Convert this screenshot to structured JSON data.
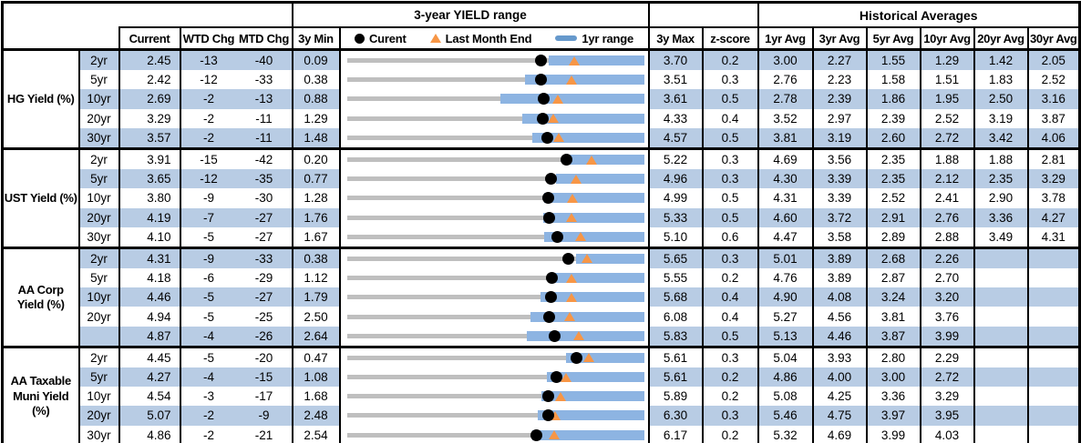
{
  "titles": {
    "chart_box": "3-year YIELD range",
    "historical": "Historical Averages"
  },
  "legend": {
    "current": "Curent",
    "last_month_end": "Last Month End",
    "one_year_range": "1yr range"
  },
  "columns": {
    "current": "Current",
    "wtd": "WTD Chg",
    "mtd": "MTD Chg",
    "min": "3y Min",
    "max": "3y Max",
    "z": "z-score",
    "avgs": [
      "1yr Avg",
      "3yr Avg",
      "5yr Avg",
      "10yr Avg",
      "20yr Avg",
      "30yr Avg"
    ]
  },
  "colors": {
    "band": "#B8CCE4",
    "range_bar_1yr": "#8DB4E2",
    "range_bar_3yr": "#BFBFBF",
    "current_dot": "#000000",
    "last_month_triangle": "#F79646",
    "border": "#000000"
  },
  "sections": [
    {
      "label": "HG Yield (%)",
      "rows": [
        {
          "tenor": "2yr",
          "current": "2.45",
          "wtd": "-13",
          "mtd": "-40",
          "min": "0.09",
          "max": "3.70",
          "z": "0.2",
          "avgs": [
            "3.00",
            "2.27",
            "1.55",
            "1.29",
            "1.42",
            "2.05"
          ],
          "lme": 2.85,
          "r1": 2.54
        },
        {
          "tenor": "5yr",
          "current": "2.42",
          "wtd": "-12",
          "mtd": "-33",
          "min": "0.38",
          "max": "3.51",
          "z": "0.3",
          "avgs": [
            "2.76",
            "2.23",
            "1.58",
            "1.51",
            "1.83",
            "2.52"
          ],
          "lme": 2.75,
          "r1": 2.26
        },
        {
          "tenor": "10yr",
          "current": "2.69",
          "wtd": "-2",
          "mtd": "-13",
          "min": "0.88",
          "max": "3.61",
          "z": "0.5",
          "avgs": [
            "2.78",
            "2.39",
            "1.86",
            "1.95",
            "2.50",
            "3.16"
          ],
          "lme": 2.82,
          "r1": 2.29
        },
        {
          "tenor": "20yr",
          "current": "3.29",
          "wtd": "-2",
          "mtd": "-11",
          "min": "1.29",
          "max": "4.33",
          "z": "0.4",
          "avgs": [
            "3.52",
            "2.97",
            "2.39",
            "2.52",
            "3.19",
            "3.87"
          ],
          "lme": 3.4,
          "r1": 3.09
        },
        {
          "tenor": "30yr",
          "current": "3.57",
          "wtd": "-2",
          "mtd": "-11",
          "min": "1.48",
          "max": "4.57",
          "z": "0.5",
          "avgs": [
            "3.81",
            "3.19",
            "2.60",
            "2.72",
            "3.42",
            "4.06"
          ],
          "lme": 3.68,
          "r1": 3.41
        }
      ]
    },
    {
      "label": "UST Yield (%)",
      "rows": [
        {
          "tenor": "2yr",
          "current": "3.91",
          "wtd": "-15",
          "mtd": "-42",
          "min": "0.20",
          "max": "5.22",
          "z": "0.3",
          "avgs": [
            "4.69",
            "3.56",
            "2.35",
            "1.88",
            "1.88",
            "2.81"
          ],
          "lme": 4.33,
          "r1": 3.88
        },
        {
          "tenor": "5yr",
          "current": "3.65",
          "wtd": "-12",
          "mtd": "-35",
          "min": "0.77",
          "max": "4.96",
          "z": "0.3",
          "avgs": [
            "4.30",
            "3.39",
            "2.35",
            "2.12",
            "2.35",
            "3.29"
          ],
          "lme": 4.0,
          "r1": 3.72
        },
        {
          "tenor": "10yr",
          "current": "3.80",
          "wtd": "-9",
          "mtd": "-30",
          "min": "1.28",
          "max": "4.99",
          "z": "0.5",
          "avgs": [
            "4.31",
            "3.39",
            "2.52",
            "2.41",
            "2.90",
            "3.78"
          ],
          "lme": 4.1,
          "r1": 3.74
        },
        {
          "tenor": "20yr",
          "current": "4.19",
          "wtd": "-7",
          "mtd": "-27",
          "min": "1.76",
          "max": "5.33",
          "z": "0.5",
          "avgs": [
            "4.60",
            "3.72",
            "2.91",
            "2.76",
            "3.36",
            "4.27"
          ],
          "lme": 4.46,
          "r1": 4.12
        },
        {
          "tenor": "30yr",
          "current": "4.10",
          "wtd": "-5",
          "mtd": "-27",
          "min": "1.67",
          "max": "5.10",
          "z": "0.6",
          "avgs": [
            "4.47",
            "3.58",
            "2.89",
            "2.88",
            "3.49",
            "4.31"
          ],
          "lme": 4.37,
          "r1": 3.95
        }
      ]
    },
    {
      "label": "AA Corp Yield (%)",
      "rows": [
        {
          "tenor": "2yr",
          "current": "4.31",
          "wtd": "-9",
          "mtd": "-33",
          "min": "0.38",
          "max": "5.65",
          "z": "0.3",
          "avgs": [
            "5.01",
            "3.89",
            "2.68",
            "2.26",
            "",
            ""
          ],
          "lme": 4.64,
          "r1": 4.45
        },
        {
          "tenor": "5yr",
          "current": "4.18",
          "wtd": "-6",
          "mtd": "-29",
          "min": "1.12",
          "max": "5.55",
          "z": "0.2",
          "avgs": [
            "4.76",
            "3.89",
            "2.87",
            "2.70",
            "",
            ""
          ],
          "lme": 4.47,
          "r1": 4.13
        },
        {
          "tenor": "10yr",
          "current": "4.46",
          "wtd": "-5",
          "mtd": "-27",
          "min": "1.79",
          "max": "5.68",
          "z": "0.4",
          "avgs": [
            "4.90",
            "4.08",
            "3.24",
            "3.20",
            "",
            ""
          ],
          "lme": 4.73,
          "r1": 4.33
        },
        {
          "tenor": "20yr",
          "current": "4.94",
          "wtd": "-5",
          "mtd": "-25",
          "min": "2.50",
          "max": "6.08",
          "z": "0.4",
          "avgs": [
            "5.27",
            "4.56",
            "3.81",
            "3.76",
            "",
            ""
          ],
          "lme": 5.19,
          "r1": 4.71
        },
        {
          "tenor": "",
          "current": "4.87",
          "wtd": "-4",
          "mtd": "-26",
          "min": "2.64",
          "max": "5.83",
          "z": "0.5",
          "avgs": [
            "5.13",
            "4.46",
            "3.87",
            "3.99",
            "",
            ""
          ],
          "lme": 5.13,
          "r1": 4.57
        }
      ]
    },
    {
      "label": "AA Taxable Muni Yield (%)",
      "rows": [
        {
          "tenor": "2yr",
          "current": "4.45",
          "wtd": "-5",
          "mtd": "-20",
          "min": "0.47",
          "max": "5.61",
          "z": "0.3",
          "avgs": [
            "5.04",
            "3.93",
            "2.80",
            "2.29",
            "",
            ""
          ],
          "lme": 4.65,
          "r1": 4.27
        },
        {
          "tenor": "5yr",
          "current": "4.27",
          "wtd": "-4",
          "mtd": "-15",
          "min": "1.08",
          "max": "5.61",
          "z": "0.2",
          "avgs": [
            "4.86",
            "4.00",
            "3.00",
            "2.72",
            "",
            ""
          ],
          "lme": 4.42,
          "r1": 4.13
        },
        {
          "tenor": "10yr",
          "current": "4.54",
          "wtd": "-3",
          "mtd": "-17",
          "min": "1.68",
          "max": "5.89",
          "z": "0.2",
          "avgs": [
            "5.08",
            "4.25",
            "3.36",
            "3.29",
            "",
            ""
          ],
          "lme": 4.71,
          "r1": 4.44
        },
        {
          "tenor": "20yr",
          "current": "5.07",
          "wtd": "-2",
          "mtd": "-9",
          "min": "2.48",
          "max": "6.30",
          "z": "0.3",
          "avgs": [
            "5.46",
            "4.75",
            "3.97",
            "3.95",
            "",
            ""
          ],
          "lme": 5.16,
          "r1": 4.94
        },
        {
          "tenor": "30yr",
          "current": "4.86",
          "wtd": "-2",
          "mtd": "-21",
          "min": "2.54",
          "max": "6.17",
          "z": "0.2",
          "avgs": [
            "5.32",
            "4.69",
            "3.99",
            "4.03",
            "",
            ""
          ],
          "lme": 5.07,
          "r1": 4.8
        }
      ]
    }
  ],
  "chart_data": {
    "type": "bullet-range-table",
    "title": "3-year YIELD range",
    "unit": "yield %",
    "legend_entries": [
      "Curent (black dot)",
      "Last Month End (orange triangle)",
      "1yr range (blue bar)"
    ],
    "note": "Each row: gray bar spans 3y Min to 3y Max; blue bar spans estimated 1yr range ending at 3y Max; dot = Current; triangle = Last Month End (Current minus MTD change in bp).",
    "series": [
      {
        "name": "HG Yield (%)",
        "rows": [
          {
            "tenor": "2yr",
            "min3y": 0.09,
            "yr1_low": 2.54,
            "current": 2.45,
            "last_month_end": 2.85,
            "max3y": 3.7
          },
          {
            "tenor": "5yr",
            "min3y": 0.38,
            "yr1_low": 2.26,
            "current": 2.42,
            "last_month_end": 2.75,
            "max3y": 3.51
          },
          {
            "tenor": "10yr",
            "min3y": 0.88,
            "yr1_low": 2.29,
            "current": 2.69,
            "last_month_end": 2.82,
            "max3y": 3.61
          },
          {
            "tenor": "20yr",
            "min3y": 1.29,
            "yr1_low": 3.09,
            "current": 3.29,
            "last_month_end": 3.4,
            "max3y": 4.33
          },
          {
            "tenor": "30yr",
            "min3y": 1.48,
            "yr1_low": 3.41,
            "current": 3.57,
            "last_month_end": 3.68,
            "max3y": 4.57
          }
        ]
      },
      {
        "name": "UST Yield (%)",
        "rows": [
          {
            "tenor": "2yr",
            "min3y": 0.2,
            "yr1_low": 3.88,
            "current": 3.91,
            "last_month_end": 4.33,
            "max3y": 5.22
          },
          {
            "tenor": "5yr",
            "min3y": 0.77,
            "yr1_low": 3.72,
            "current": 3.65,
            "last_month_end": 4.0,
            "max3y": 4.96
          },
          {
            "tenor": "10yr",
            "min3y": 1.28,
            "yr1_low": 3.74,
            "current": 3.8,
            "last_month_end": 4.1,
            "max3y": 4.99
          },
          {
            "tenor": "20yr",
            "min3y": 1.76,
            "yr1_low": 4.12,
            "current": 4.19,
            "last_month_end": 4.46,
            "max3y": 5.33
          },
          {
            "tenor": "30yr",
            "min3y": 1.67,
            "yr1_low": 3.95,
            "current": 4.1,
            "last_month_end": 4.37,
            "max3y": 5.1
          }
        ]
      },
      {
        "name": "AA Corp Yield (%)",
        "rows": [
          {
            "tenor": "2yr",
            "min3y": 0.38,
            "yr1_low": 4.45,
            "current": 4.31,
            "last_month_end": 4.64,
            "max3y": 5.65
          },
          {
            "tenor": "5yr",
            "min3y": 1.12,
            "yr1_low": 4.13,
            "current": 4.18,
            "last_month_end": 4.47,
            "max3y": 5.55
          },
          {
            "tenor": "10yr",
            "min3y": 1.79,
            "yr1_low": 4.33,
            "current": 4.46,
            "last_month_end": 4.73,
            "max3y": 5.68
          },
          {
            "tenor": "20yr",
            "min3y": 2.5,
            "yr1_low": 4.71,
            "current": 4.94,
            "last_month_end": 5.19,
            "max3y": 6.08
          },
          {
            "tenor": "30yr",
            "min3y": 2.64,
            "yr1_low": 4.57,
            "current": 4.87,
            "last_month_end": 5.13,
            "max3y": 5.83
          }
        ]
      },
      {
        "name": "AA Taxable Muni Yield (%)",
        "rows": [
          {
            "tenor": "2yr",
            "min3y": 0.47,
            "yr1_low": 4.27,
            "current": 4.45,
            "last_month_end": 4.65,
            "max3y": 5.61
          },
          {
            "tenor": "5yr",
            "min3y": 1.08,
            "yr1_low": 4.13,
            "current": 4.27,
            "last_month_end": 4.42,
            "max3y": 5.61
          },
          {
            "tenor": "10yr",
            "min3y": 1.68,
            "yr1_low": 4.44,
            "current": 4.54,
            "last_month_end": 4.71,
            "max3y": 5.89
          },
          {
            "tenor": "20yr",
            "min3y": 2.48,
            "yr1_low": 4.94,
            "current": 5.07,
            "last_month_end": 5.16,
            "max3y": 6.3
          },
          {
            "tenor": "30yr",
            "min3y": 2.54,
            "yr1_low": 4.8,
            "current": 4.86,
            "last_month_end": 5.07,
            "max3y": 6.17
          }
        ]
      }
    ]
  }
}
